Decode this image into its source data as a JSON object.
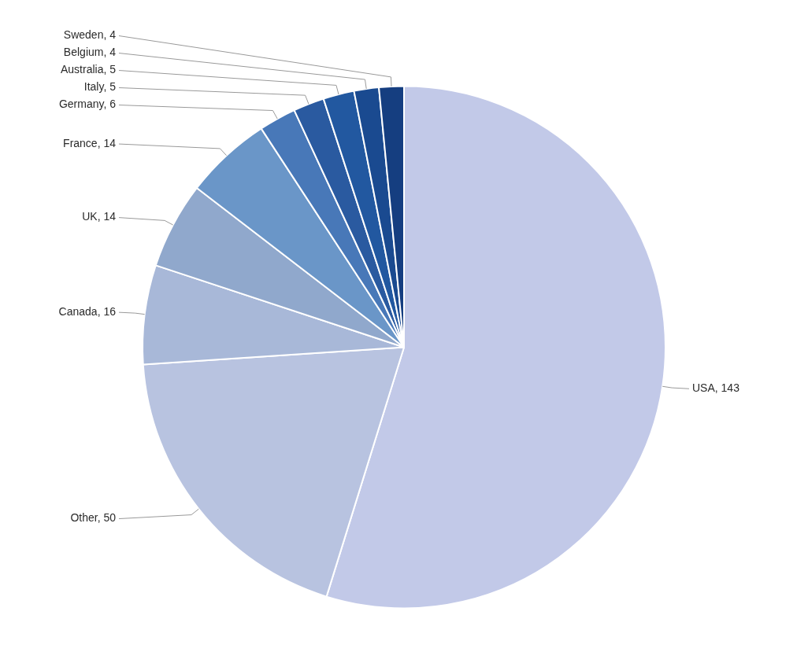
{
  "chart_data": {
    "type": "pie",
    "categories": [
      "USA",
      "Other",
      "Canada",
      "UK",
      "France",
      "Germany",
      "Italy",
      "Australia",
      "Belgium",
      "Sweden"
    ],
    "values": [
      143,
      50,
      16,
      14,
      14,
      6,
      5,
      5,
      4,
      4
    ],
    "value_labels": [
      "USA, 143",
      "Other, 50",
      "Canada, 16",
      "UK, 14",
      "France, 14",
      "Germany, 6",
      "Italy, 5",
      "Australia, 5",
      "Belgium, 4",
      "Sweden, 4"
    ],
    "colors": [
      "#c2c9e8",
      "#b8c3e0",
      "#a8b8d8",
      "#90a8cc",
      "#6a96c8",
      "#4878b8",
      "#2a5aa0",
      "#2258a0",
      "#1a4a90",
      "#153e80"
    ],
    "data_labels": true
  }
}
